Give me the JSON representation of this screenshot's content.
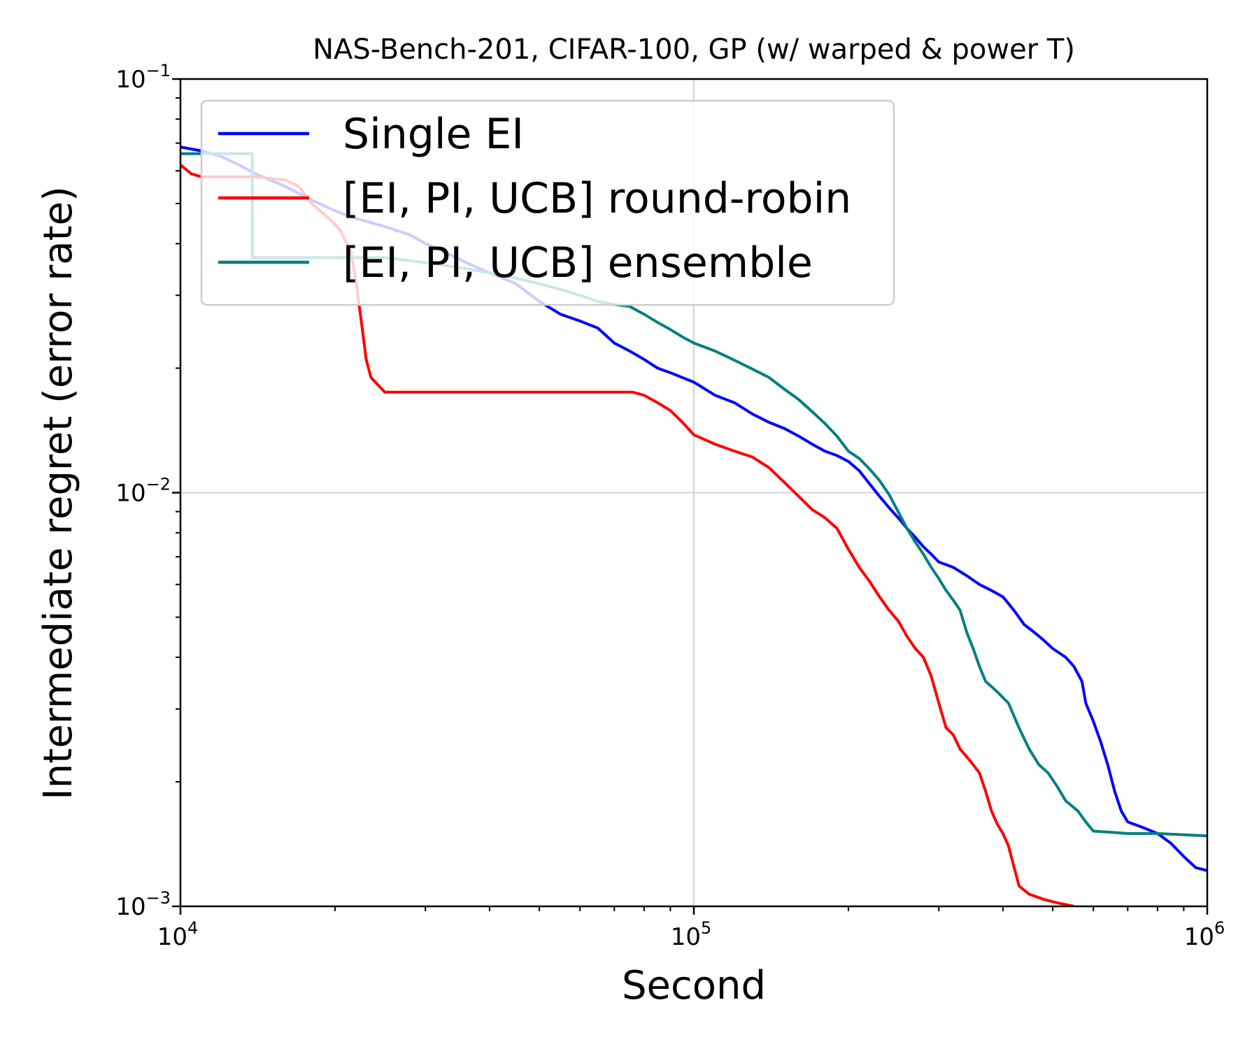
{
  "chart_data": {
    "type": "line",
    "title": "NAS-Bench-201, CIFAR-100, GP (w/ warped & power T)",
    "xlabel": "Second",
    "ylabel": "Intermediate regret (error rate)",
    "xscale": "log",
    "yscale": "log",
    "xlim": [
      10000,
      1000000
    ],
    "ylim": [
      0.001,
      0.1
    ],
    "grid": "major",
    "legend_position": "top-left",
    "x_ticks": [
      {
        "value": 10000,
        "base": "10",
        "exp": "4"
      },
      {
        "value": 100000,
        "base": "10",
        "exp": "5"
      },
      {
        "value": 1000000,
        "base": "10",
        "exp": "6"
      }
    ],
    "y_ticks": [
      {
        "value": 0.1,
        "base": "10",
        "exp": "−1"
      },
      {
        "value": 0.01,
        "base": "10",
        "exp": "−2"
      },
      {
        "value": 0.001,
        "base": "10",
        "exp": "−3"
      }
    ],
    "series": [
      {
        "name": "Single EI",
        "color": "#0000ff",
        "points": [
          [
            10000,
            0.0685
          ],
          [
            11000,
            0.067
          ],
          [
            12000,
            0.065
          ],
          [
            13000,
            0.062
          ],
          [
            14000,
            0.059
          ],
          [
            16000,
            0.055
          ],
          [
            18000,
            0.051
          ],
          [
            20000,
            0.048
          ],
          [
            22000,
            0.046
          ],
          [
            25000,
            0.044
          ],
          [
            28000,
            0.042
          ],
          [
            30000,
            0.04
          ],
          [
            33000,
            0.038
          ],
          [
            36000,
            0.036
          ],
          [
            40000,
            0.034
          ],
          [
            45000,
            0.032
          ],
          [
            50000,
            0.029
          ],
          [
            55000,
            0.027
          ],
          [
            60000,
            0.026
          ],
          [
            65000,
            0.025
          ],
          [
            70000,
            0.023
          ],
          [
            75000,
            0.022
          ],
          [
            80000,
            0.021
          ],
          [
            85000,
            0.02
          ],
          [
            90000,
            0.0195
          ],
          [
            100000,
            0.0185
          ],
          [
            110000,
            0.0172
          ],
          [
            120000,
            0.0165
          ],
          [
            130000,
            0.0155
          ],
          [
            140000,
            0.0148
          ],
          [
            150000,
            0.0143
          ],
          [
            160000,
            0.0137
          ],
          [
            170000,
            0.0131
          ],
          [
            180000,
            0.0126
          ],
          [
            190000,
            0.0123
          ],
          [
            200000,
            0.0119
          ],
          [
            210000,
            0.0113
          ],
          [
            220000,
            0.0105
          ],
          [
            230000,
            0.0098
          ],
          [
            240000,
            0.0092
          ],
          [
            250000,
            0.0087
          ],
          [
            260000,
            0.0082
          ],
          [
            270000,
            0.0078
          ],
          [
            280000,
            0.0074
          ],
          [
            290000,
            0.0071
          ],
          [
            300000,
            0.0068
          ],
          [
            320000,
            0.0066
          ],
          [
            340000,
            0.0063
          ],
          [
            360000,
            0.006
          ],
          [
            380000,
            0.0058
          ],
          [
            400000,
            0.0056
          ],
          [
            420000,
            0.0052
          ],
          [
            440000,
            0.0048
          ],
          [
            460000,
            0.0046
          ],
          [
            480000,
            0.0044
          ],
          [
            500000,
            0.0042
          ],
          [
            530000,
            0.004
          ],
          [
            550000,
            0.0038
          ],
          [
            570000,
            0.0035
          ],
          [
            580000,
            0.0031
          ],
          [
            600000,
            0.0028
          ],
          [
            620000,
            0.0025
          ],
          [
            640000,
            0.0022
          ],
          [
            660000,
            0.0019
          ],
          [
            680000,
            0.0017
          ],
          [
            700000,
            0.0016
          ],
          [
            750000,
            0.00155
          ],
          [
            800000,
            0.0015
          ],
          [
            850000,
            0.00142
          ],
          [
            900000,
            0.00132
          ],
          [
            950000,
            0.00124
          ],
          [
            1000000,
            0.00122
          ]
        ]
      },
      {
        "name": "[EI, PI, UCB] round-robin",
        "color": "#ff0000",
        "points": [
          [
            10000,
            0.062
          ],
          [
            10500,
            0.059
          ],
          [
            11000,
            0.058
          ],
          [
            14000,
            0.058
          ],
          [
            16000,
            0.057
          ],
          [
            17000,
            0.055
          ],
          [
            18000,
            0.05
          ],
          [
            19500,
            0.046
          ],
          [
            20500,
            0.043
          ],
          [
            21500,
            0.038
          ],
          [
            22000,
            0.032
          ],
          [
            22500,
            0.026
          ],
          [
            23000,
            0.021
          ],
          [
            23500,
            0.019
          ],
          [
            25000,
            0.0175
          ],
          [
            40000,
            0.0175
          ],
          [
            60000,
            0.0175
          ],
          [
            76000,
            0.0175
          ],
          [
            80000,
            0.0172
          ],
          [
            85000,
            0.0165
          ],
          [
            90000,
            0.0158
          ],
          [
            95000,
            0.0148
          ],
          [
            100000,
            0.0138
          ],
          [
            110000,
            0.0131
          ],
          [
            120000,
            0.0126
          ],
          [
            130000,
            0.0122
          ],
          [
            140000,
            0.0115
          ],
          [
            150000,
            0.0106
          ],
          [
            160000,
            0.0098
          ],
          [
            170000,
            0.0091
          ],
          [
            180000,
            0.0087
          ],
          [
            190000,
            0.0082
          ],
          [
            200000,
            0.0073
          ],
          [
            210000,
            0.0066
          ],
          [
            220000,
            0.0061
          ],
          [
            230000,
            0.0056
          ],
          [
            240000,
            0.0052
          ],
          [
            250000,
            0.0049
          ],
          [
            260000,
            0.0045
          ],
          [
            270000,
            0.0042
          ],
          [
            280000,
            0.004
          ],
          [
            290000,
            0.0036
          ],
          [
            300000,
            0.0031
          ],
          [
            310000,
            0.0027
          ],
          [
            320000,
            0.0026
          ],
          [
            330000,
            0.0024
          ],
          [
            340000,
            0.0023
          ],
          [
            350000,
            0.0022
          ],
          [
            360000,
            0.0021
          ],
          [
            370000,
            0.0019
          ],
          [
            380000,
            0.0017
          ],
          [
            390000,
            0.00158
          ],
          [
            400000,
            0.0015
          ],
          [
            410000,
            0.0014
          ],
          [
            420000,
            0.00125
          ],
          [
            430000,
            0.00112
          ],
          [
            450000,
            0.00107
          ],
          [
            480000,
            0.00104
          ],
          [
            510000,
            0.00102
          ],
          [
            550000,
            0.001
          ]
        ]
      },
      {
        "name": "[EI, PI, UCB] ensemble",
        "color": "#008080",
        "points": [
          [
            10000,
            0.066
          ],
          [
            13800,
            0.066
          ],
          [
            13801,
            0.037
          ],
          [
            20000,
            0.037
          ],
          [
            25000,
            0.037
          ],
          [
            30000,
            0.036
          ],
          [
            35000,
            0.035
          ],
          [
            40000,
            0.034
          ],
          [
            45000,
            0.033
          ],
          [
            50000,
            0.032
          ],
          [
            55000,
            0.031
          ],
          [
            60000,
            0.03
          ],
          [
            65000,
            0.029
          ],
          [
            70000,
            0.0285
          ],
          [
            75000,
            0.0282
          ],
          [
            80000,
            0.027
          ],
          [
            85000,
            0.0258
          ],
          [
            90000,
            0.0248
          ],
          [
            95000,
            0.0238
          ],
          [
            100000,
            0.023
          ],
          [
            110000,
            0.022
          ],
          [
            120000,
            0.0209
          ],
          [
            130000,
            0.0199
          ],
          [
            140000,
            0.019
          ],
          [
            150000,
            0.0178
          ],
          [
            160000,
            0.0168
          ],
          [
            170000,
            0.0157
          ],
          [
            180000,
            0.0147
          ],
          [
            190000,
            0.0137
          ],
          [
            200000,
            0.0126
          ],
          [
            210000,
            0.0121
          ],
          [
            220000,
            0.0114
          ],
          [
            230000,
            0.0107
          ],
          [
            240000,
            0.0099
          ],
          [
            250000,
            0.009
          ],
          [
            260000,
            0.0082
          ],
          [
            270000,
            0.0076
          ],
          [
            280000,
            0.0071
          ],
          [
            290000,
            0.0066
          ],
          [
            300000,
            0.0062
          ],
          [
            310000,
            0.0058
          ],
          [
            320000,
            0.0055
          ],
          [
            330000,
            0.0052
          ],
          [
            340000,
            0.0046
          ],
          [
            350000,
            0.0042
          ],
          [
            360000,
            0.0038
          ],
          [
            370000,
            0.0035
          ],
          [
            390000,
            0.0033
          ],
          [
            410000,
            0.0031
          ],
          [
            430000,
            0.0027
          ],
          [
            450000,
            0.0024
          ],
          [
            470000,
            0.0022
          ],
          [
            490000,
            0.0021
          ],
          [
            510000,
            0.00195
          ],
          [
            530000,
            0.0018
          ],
          [
            560000,
            0.0017
          ],
          [
            580000,
            0.0016
          ],
          [
            600000,
            0.00152
          ],
          [
            650000,
            0.00151
          ],
          [
            700000,
            0.0015
          ],
          [
            800000,
            0.0015
          ],
          [
            1000000,
            0.00148
          ]
        ]
      }
    ]
  }
}
